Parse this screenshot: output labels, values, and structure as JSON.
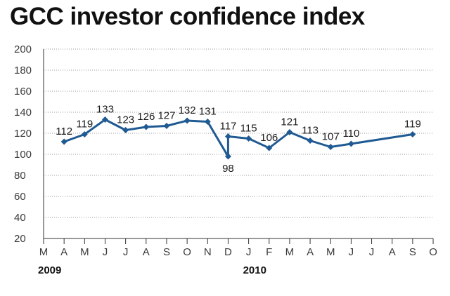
{
  "title": "GCC investor confidence index",
  "chart_data": {
    "type": "line",
    "title": "GCC investor confidence index",
    "xlabel": "",
    "ylabel": "",
    "ylim": [
      20,
      200
    ],
    "yticks": [
      20,
      40,
      60,
      80,
      100,
      120,
      140,
      160,
      180,
      200
    ],
    "grid": "horizontal",
    "x_ticks": [
      "M",
      "A",
      "M",
      "J",
      "J",
      "A",
      "S",
      "O",
      "N",
      "D",
      "J",
      "F",
      "M",
      "A",
      "M",
      "J",
      "J",
      "A",
      "S",
      "O"
    ],
    "year_labels": [
      {
        "label": "2009",
        "tick_index": 0
      },
      {
        "label": "2010",
        "tick_index": 10
      }
    ],
    "series": [
      {
        "color": "#1f5a92",
        "points": [
          {
            "x": "2009-04-01",
            "y": 112
          },
          {
            "x": "2009-05-01",
            "y": 119
          },
          {
            "x": "2009-06-01",
            "y": 133
          },
          {
            "x": "2009-07-01",
            "y": 123
          },
          {
            "x": "2009-08-01",
            "y": 126
          },
          {
            "x": "2009-09-01",
            "y": 127
          },
          {
            "x": "2009-10-01",
            "y": 132
          },
          {
            "x": "2009-11-01",
            "y": 131
          },
          {
            "x": "2009-12-01",
            "y": 98
          },
          {
            "x": "2009-12-01",
            "y": 117
          },
          {
            "x": "2010-01-01",
            "y": 115
          },
          {
            "x": "2010-02-01",
            "y": 106
          },
          {
            "x": "2010-03-01",
            "y": 121
          },
          {
            "x": "2010-04-01",
            "y": 113
          },
          {
            "x": "2010-05-01",
            "y": 107
          },
          {
            "x": "2010-06-01",
            "y": 110
          },
          {
            "x": "2010-09-01",
            "y": 119
          }
        ]
      }
    ]
  }
}
